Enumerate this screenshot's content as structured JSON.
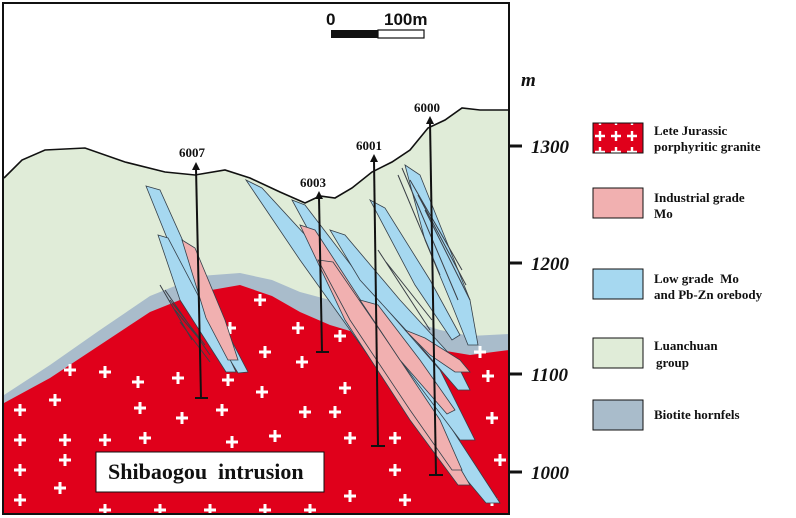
{
  "scale_bar": {
    "start": "0",
    "end": "100m"
  },
  "axis": {
    "unit": "m",
    "ticks": [
      "1300",
      "1200",
      "1100",
      "1000"
    ]
  },
  "drill_holes": [
    "6007",
    "6003",
    "6001",
    "6000"
  ],
  "intrusion_label": "Shibaogou  intrusion",
  "legend": [
    {
      "lines": [
        "Lete Jurassic",
        "porphyritic granite"
      ],
      "color": "#e0001b",
      "pattern": "plus"
    },
    {
      "lines": [
        "Industrial grade",
        "Mo"
      ],
      "color": "#f1b0b0"
    },
    {
      "lines": [
        "Low grade  Mo",
        "and Pb-Zn orebody"
      ],
      "color": "#a6d8f0"
    },
    {
      "lines": [
        "Luanchuan",
        "group"
      ],
      "color": "#e0ecd8"
    },
    {
      "lines": [
        "Biotite hornfels"
      ],
      "color": "#a9bccb"
    }
  ],
  "colors": {
    "granite": "#e0001b",
    "industrial_mo": "#f1b0b0",
    "low_grade": "#a6d8f0",
    "luanchuan": "#e0ecd8",
    "hornfels": "#a9bccb"
  }
}
